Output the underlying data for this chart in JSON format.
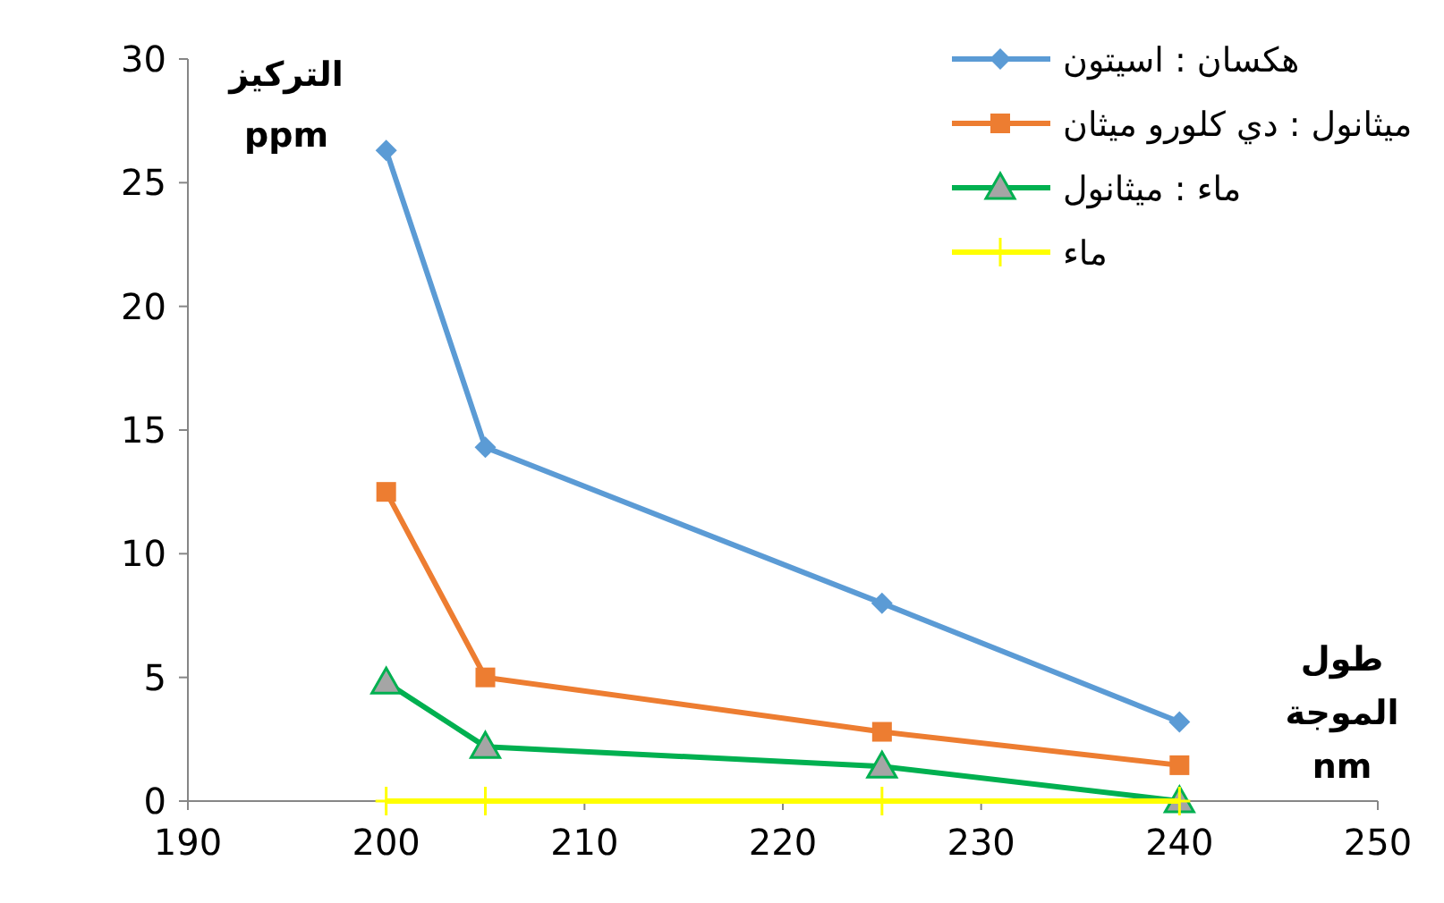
{
  "chart_data": {
    "type": "line",
    "xlabel": "طول الموجة nm",
    "ylabel": "التركيز ppm",
    "x": [
      200,
      205,
      225,
      240
    ],
    "xlim": [
      190,
      250
    ],
    "xticks": [
      190,
      200,
      210,
      220,
      230,
      240,
      250
    ],
    "ylim": [
      0,
      30
    ],
    "yticks": [
      0,
      5,
      10,
      15,
      20,
      25,
      30
    ],
    "legend": "top right",
    "grid": false,
    "line_style": "solid",
    "series": [
      {
        "name": "هكسان : اسيتون",
        "color": "#5b9bd5",
        "marker": "diamond",
        "values": [
          26.3,
          14.3,
          8.0,
          3.2
        ]
      },
      {
        "name": "ميثانول : دي كلورو ميثان",
        "color": "#ed7d31",
        "marker": "square",
        "values": [
          12.5,
          5.0,
          2.8,
          1.45
        ]
      },
      {
        "name": "ماء : ميثانول",
        "color": "#00b050",
        "marker": "triangle",
        "values": [
          4.8,
          2.2,
          1.4,
          0
        ]
      },
      {
        "name": "ماء",
        "color": "#ffff00",
        "marker": "cross",
        "values": [
          0,
          0,
          0,
          0
        ]
      }
    ]
  }
}
